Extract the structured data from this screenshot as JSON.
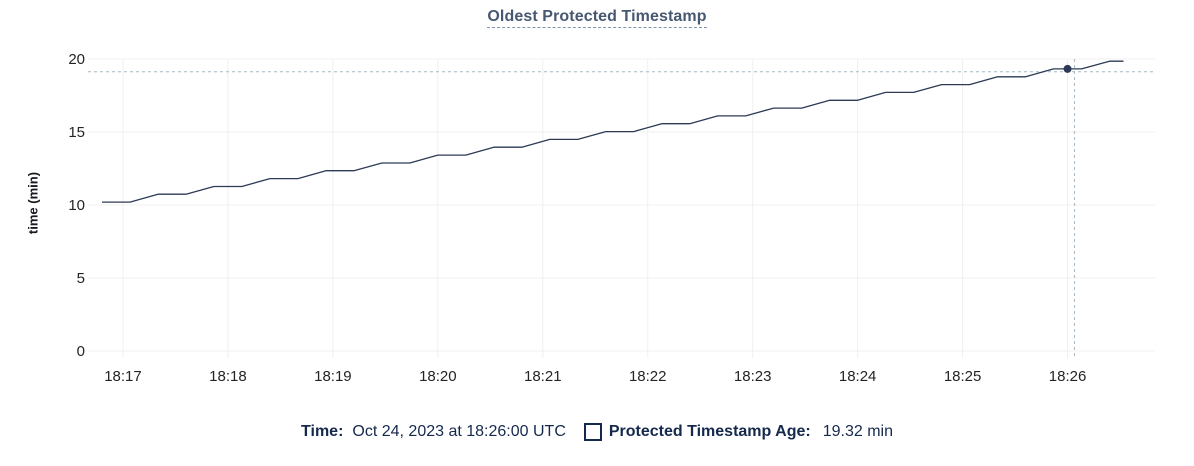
{
  "chart": {
    "colors": {
      "line": "#2c3a55",
      "grid": "#f0f0f0",
      "crosshair": "#a7b8c2",
      "tick_text": "#242424",
      "title_text": "#475872",
      "legend_text": "#15294d"
    }
  },
  "chart_data": {
    "type": "line",
    "title": "Oldest Protected Timestamp",
    "xlabel": "",
    "ylabel": "time (min)",
    "ylim": [
      0,
      20
    ],
    "yticks": [
      0,
      5,
      10,
      15,
      20
    ],
    "xticks": [
      "18:17",
      "18:18",
      "18:19",
      "18:20",
      "18:21",
      "18:22",
      "18:23",
      "18:24",
      "18:25",
      "18:26"
    ],
    "x_range": [
      "18:16:40",
      "18:26:50"
    ],
    "grid": true,
    "legend_position": "bottom",
    "series": [
      {
        "name": "Protected Timestamp Age",
        "unit": "min",
        "points": [
          [
            "18:16:48",
            10.2
          ],
          [
            "18:17:04",
            10.2
          ],
          [
            "18:17:20",
            10.74
          ],
          [
            "18:17:36",
            10.74
          ],
          [
            "18:17:52",
            11.27
          ],
          [
            "18:18:08",
            11.27
          ],
          [
            "18:18:24",
            11.81
          ],
          [
            "18:18:40",
            11.81
          ],
          [
            "18:18:56",
            12.35
          ],
          [
            "18:19:12",
            12.35
          ],
          [
            "18:19:28",
            12.88
          ],
          [
            "18:19:44",
            12.88
          ],
          [
            "18:20:00",
            13.42
          ],
          [
            "18:20:16",
            13.42
          ],
          [
            "18:20:32",
            13.96
          ],
          [
            "18:20:48",
            13.96
          ],
          [
            "18:21:04",
            14.49
          ],
          [
            "18:21:20",
            14.49
          ],
          [
            "18:21:36",
            15.03
          ],
          [
            "18:21:52",
            15.03
          ],
          [
            "18:22:08",
            15.57
          ],
          [
            "18:22:24",
            15.57
          ],
          [
            "18:22:40",
            16.1
          ],
          [
            "18:22:56",
            16.1
          ],
          [
            "18:23:12",
            16.64
          ],
          [
            "18:23:28",
            16.64
          ],
          [
            "18:23:44",
            17.17
          ],
          [
            "18:24:00",
            17.17
          ],
          [
            "18:24:16",
            17.71
          ],
          [
            "18:24:32",
            17.71
          ],
          [
            "18:24:48",
            18.25
          ],
          [
            "18:25:04",
            18.25
          ],
          [
            "18:25:20",
            18.78
          ],
          [
            "18:25:36",
            18.78
          ],
          [
            "18:25:52",
            19.32
          ],
          [
            "18:26:08",
            19.32
          ],
          [
            "18:26:24",
            19.85
          ],
          [
            "18:26:32",
            19.85
          ]
        ]
      }
    ],
    "hover": {
      "time": "18:26:00",
      "value": 19.32,
      "crosshair_time": "18:26:04",
      "crosshair_value": 19.13
    }
  },
  "legend": {
    "time_label": "Time:",
    "time_value": "Oct 24, 2023 at 18:26:00 UTC",
    "series_label": "Protected Timestamp Age:",
    "series_value": "19.32 min"
  }
}
